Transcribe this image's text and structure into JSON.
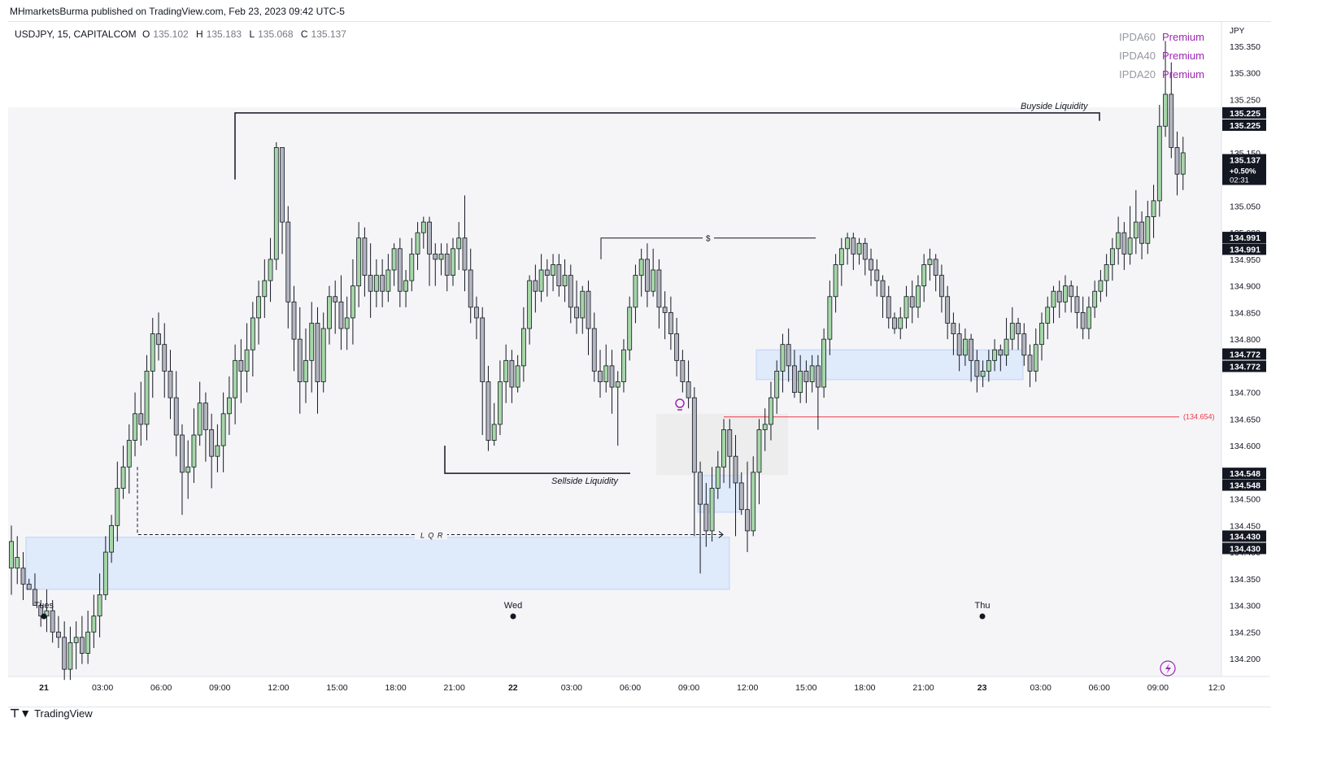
{
  "publisher_line": "MHmarketsBurma published on TradingView.com, Feb 23, 2023 09:42 UTC-5",
  "symbol": {
    "name": "USDJPY, 15, CAPITALCOM",
    "open_label": "O",
    "open": "135.102",
    "high_label": "H",
    "high": "135.183",
    "low_label": "L",
    "low": "135.068",
    "close_label": "C",
    "close": "135.137"
  },
  "ipda": [
    {
      "name": "IPDA60",
      "zone": "Premium"
    },
    {
      "name": "IPDA40",
      "zone": "Premium"
    },
    {
      "name": "IPDA20",
      "zone": "Premium"
    }
  ],
  "footer": {
    "brand": "TradingView"
  },
  "colors": {
    "up": "#a5d6a7",
    "down": "#b2b5be",
    "wick": "#131722",
    "zone_fill": "#dbe7fa",
    "zone_border": "#bfd3f5",
    "red_line": "#f23645",
    "premium": "#9c27b0"
  },
  "chart_data": {
    "type": "candlestick",
    "currency": "JPY",
    "ylim": [
      134.15,
      135.4
    ],
    "yticks": [
      "134.200",
      "134.250",
      "134.300",
      "134.350",
      "134.400",
      "134.450",
      "134.500",
      "134.550",
      "134.600",
      "134.650",
      "134.700",
      "134.750",
      "134.800",
      "134.850",
      "134.900",
      "134.950",
      "135.000",
      "135.050",
      "135.100",
      "135.150",
      "135.200",
      "135.250",
      "135.300",
      "135.350"
    ],
    "xticks": [
      {
        "label": "21",
        "major": true
      },
      {
        "label": "03:00"
      },
      {
        "label": "06:00"
      },
      {
        "label": "09:00"
      },
      {
        "label": "12:00"
      },
      {
        "label": "15:00"
      },
      {
        "label": "18:00"
      },
      {
        "label": "21:00"
      },
      {
        "label": "22",
        "major": true
      },
      {
        "label": "03:00"
      },
      {
        "label": "06:00"
      },
      {
        "label": "09:00"
      },
      {
        "label": "12:00"
      },
      {
        "label": "15:00"
      },
      {
        "label": "18:00"
      },
      {
        "label": "21:00"
      },
      {
        "label": "23",
        "major": true
      },
      {
        "label": "03:00"
      },
      {
        "label": "06:00"
      },
      {
        "label": "09:00"
      },
      {
        "label": "12:0"
      }
    ],
    "day_markers": [
      "Tues",
      "Wed",
      "Thu"
    ],
    "price_tags": [
      {
        "label": "135.225",
        "y": 135.225
      },
      {
        "label": "135.225",
        "y": 135.202
      },
      {
        "label": "134.991",
        "y": 134.991
      },
      {
        "label": "134.991",
        "y": 134.969
      },
      {
        "label": "134.772",
        "y": 134.772
      },
      {
        "label": "134.772",
        "y": 134.749
      },
      {
        "label": "134.548",
        "y": 134.548
      },
      {
        "label": "134.548",
        "y": 134.526
      },
      {
        "label": "134.430",
        "y": 134.43
      },
      {
        "label": "134.430",
        "y": 134.407
      }
    ],
    "current_price": {
      "price": "135.137",
      "change": "+0.50%",
      "countdown": "02:31",
      "y": 135.137
    },
    "red_line": {
      "label": "(134.654)",
      "y": 134.654
    },
    "annotations": {
      "buyside": "Buyside Liquidity",
      "sellside": "Sellside Liquidity",
      "lqr": "L Q R",
      "dollar": "$"
    },
    "candles": [
      [
        134.37,
        134.42,
        134.32,
        134.45
      ],
      [
        134.37,
        134.39,
        134.34,
        134.43
      ],
      [
        134.37,
        134.34,
        134.31,
        134.4
      ],
      [
        134.34,
        134.33,
        134.33,
        134.35
      ],
      [
        134.33,
        134.3,
        134.3,
        134.36
      ],
      [
        134.3,
        134.28,
        134.26,
        134.31
      ],
      [
        134.28,
        134.29,
        134.25,
        134.33
      ],
      [
        134.29,
        134.25,
        134.23,
        134.31
      ],
      [
        134.25,
        134.24,
        134.22,
        134.28
      ],
      [
        134.24,
        134.18,
        134.16,
        134.27
      ],
      [
        134.18,
        134.23,
        134.16,
        134.26
      ],
      [
        134.23,
        134.24,
        134.18,
        134.27
      ],
      [
        134.24,
        134.21,
        134.19,
        134.28
      ],
      [
        134.21,
        134.25,
        134.19,
        134.29
      ],
      [
        134.25,
        134.28,
        134.22,
        134.32
      ],
      [
        134.28,
        134.32,
        134.24,
        134.36
      ],
      [
        134.32,
        134.4,
        134.31,
        134.43
      ],
      [
        134.4,
        134.45,
        134.38,
        134.47
      ],
      [
        134.45,
        134.52,
        134.42,
        134.57
      ],
      [
        134.52,
        134.56,
        134.5,
        134.6
      ],
      [
        134.56,
        134.61,
        134.51,
        134.64
      ],
      [
        134.61,
        134.66,
        134.58,
        134.7
      ],
      [
        134.66,
        134.64,
        134.6,
        134.72
      ],
      [
        134.64,
        134.74,
        134.61,
        134.77
      ],
      [
        134.74,
        134.81,
        134.69,
        134.84
      ],
      [
        134.81,
        134.79,
        134.76,
        134.85
      ],
      [
        134.79,
        134.74,
        134.69,
        134.83
      ],
      [
        134.74,
        134.69,
        134.65,
        134.78
      ],
      [
        134.69,
        134.62,
        134.58,
        134.74
      ],
      [
        134.62,
        134.55,
        134.47,
        134.64
      ],
      [
        134.55,
        134.56,
        134.5,
        134.61
      ],
      [
        134.56,
        134.62,
        134.53,
        134.67
      ],
      [
        134.62,
        134.68,
        134.6,
        134.72
      ],
      [
        134.68,
        134.63,
        134.57,
        134.7
      ],
      [
        134.63,
        134.58,
        134.52,
        134.66
      ],
      [
        134.58,
        134.6,
        134.55,
        134.64
      ],
      [
        134.6,
        134.66,
        134.55,
        134.7
      ],
      [
        134.66,
        134.69,
        134.62,
        134.73
      ],
      [
        134.69,
        134.76,
        134.64,
        134.79
      ],
      [
        134.76,
        134.74,
        134.68,
        134.8
      ],
      [
        134.74,
        134.78,
        134.7,
        134.83
      ],
      [
        134.78,
        134.84,
        134.73,
        134.87
      ],
      [
        134.84,
        134.88,
        134.79,
        134.91
      ],
      [
        134.88,
        134.91,
        134.84,
        134.95
      ],
      [
        134.91,
        134.95,
        134.87,
        134.99
      ],
      [
        134.95,
        135.16,
        134.93,
        135.17
      ],
      [
        135.16,
        135.02,
        134.96,
        135.16
      ],
      [
        135.02,
        134.87,
        134.82,
        135.05
      ],
      [
        134.87,
        134.8,
        134.74,
        134.9
      ],
      [
        134.8,
        134.72,
        134.66,
        134.86
      ],
      [
        134.72,
        134.76,
        134.68,
        134.82
      ],
      [
        134.76,
        134.83,
        134.7,
        134.87
      ],
      [
        134.83,
        134.72,
        134.66,
        134.86
      ],
      [
        134.72,
        134.82,
        134.7,
        134.85
      ],
      [
        134.82,
        134.88,
        134.79,
        134.9
      ],
      [
        134.88,
        134.87,
        134.81,
        134.91
      ],
      [
        134.87,
        134.82,
        134.78,
        134.92
      ],
      [
        134.82,
        134.84,
        134.78,
        134.88
      ],
      [
        134.84,
        134.9,
        134.79,
        134.95
      ],
      [
        134.9,
        134.99,
        134.86,
        135.02
      ],
      [
        134.99,
        134.92,
        134.88,
        135.01
      ],
      [
        134.92,
        134.89,
        134.84,
        134.98
      ],
      [
        134.89,
        134.92,
        134.86,
        134.95
      ],
      [
        134.92,
        134.89,
        134.86,
        134.95
      ],
      [
        134.89,
        134.93,
        134.87,
        134.96
      ],
      [
        134.93,
        134.97,
        134.9,
        134.98
      ],
      [
        134.97,
        134.89,
        134.86,
        134.99
      ],
      [
        134.89,
        134.91,
        134.86,
        134.93
      ],
      [
        134.91,
        134.96,
        134.89,
        134.99
      ],
      [
        134.96,
        135.0,
        134.93,
        135.02
      ],
      [
        135.0,
        135.02,
        134.97,
        135.03
      ],
      [
        135.02,
        134.96,
        134.9,
        135.03
      ],
      [
        134.96,
        134.95,
        134.9,
        134.98
      ],
      [
        134.95,
        134.96,
        134.92,
        134.98
      ],
      [
        134.96,
        134.92,
        134.89,
        134.98
      ],
      [
        134.92,
        134.97,
        134.9,
        134.99
      ],
      [
        134.97,
        134.99,
        134.93,
        135.02
      ],
      [
        134.99,
        134.93,
        134.89,
        135.07
      ],
      [
        134.93,
        134.86,
        134.83,
        134.97
      ],
      [
        134.86,
        134.84,
        134.8,
        134.88
      ],
      [
        134.84,
        134.72,
        134.62,
        134.86
      ],
      [
        134.72,
        134.61,
        134.59,
        134.75
      ],
      [
        134.61,
        134.64,
        134.6,
        134.68
      ],
      [
        134.64,
        134.72,
        134.62,
        134.76
      ],
      [
        134.72,
        134.76,
        134.68,
        134.79
      ],
      [
        134.76,
        134.71,
        134.68,
        134.78
      ],
      [
        134.71,
        134.75,
        134.7,
        134.77
      ],
      [
        134.75,
        134.82,
        134.72,
        134.86
      ],
      [
        134.82,
        134.91,
        134.79,
        134.92
      ],
      [
        134.91,
        134.89,
        134.85,
        134.94
      ],
      [
        134.89,
        134.93,
        134.87,
        134.96
      ],
      [
        134.93,
        134.92,
        134.88,
        134.95
      ],
      [
        134.92,
        134.94,
        134.89,
        134.96
      ],
      [
        134.94,
        134.9,
        134.88,
        134.96
      ],
      [
        134.9,
        134.92,
        134.87,
        134.95
      ],
      [
        134.92,
        134.86,
        134.83,
        134.94
      ],
      [
        134.86,
        134.84,
        134.81,
        134.91
      ],
      [
        134.84,
        134.89,
        134.81,
        134.9
      ],
      [
        134.89,
        134.82,
        134.77,
        134.91
      ],
      [
        134.82,
        134.74,
        134.72,
        134.85
      ],
      [
        134.74,
        134.72,
        134.69,
        134.78
      ],
      [
        134.72,
        134.75,
        134.7,
        134.79
      ],
      [
        134.75,
        134.71,
        134.66,
        134.78
      ],
      [
        134.71,
        134.72,
        134.6,
        134.74
      ],
      [
        134.72,
        134.78,
        134.7,
        134.8
      ],
      [
        134.78,
        134.86,
        134.76,
        134.88
      ],
      [
        134.86,
        134.92,
        134.83,
        134.94
      ],
      [
        134.92,
        134.95,
        134.88,
        134.97
      ],
      [
        134.95,
        134.89,
        134.86,
        134.98
      ],
      [
        134.89,
        134.93,
        134.88,
        134.97
      ],
      [
        134.93,
        134.86,
        134.82,
        134.95
      ],
      [
        134.86,
        134.85,
        134.8,
        134.89
      ],
      [
        134.85,
        134.81,
        134.78,
        134.88
      ],
      [
        134.81,
        134.76,
        134.73,
        134.84
      ],
      [
        134.76,
        134.72,
        134.7,
        134.78
      ],
      [
        134.72,
        134.69,
        134.67,
        134.76
      ],
      [
        134.69,
        134.55,
        134.43,
        134.71
      ],
      [
        134.55,
        134.49,
        134.36,
        134.57
      ],
      [
        134.49,
        134.44,
        134.41,
        134.53
      ],
      [
        134.44,
        134.52,
        134.42,
        134.56
      ],
      [
        134.52,
        134.56,
        134.5,
        134.59
      ],
      [
        134.56,
        134.63,
        134.53,
        134.65
      ],
      [
        134.63,
        134.58,
        134.52,
        134.65
      ],
      [
        134.58,
        134.53,
        134.43,
        134.62
      ],
      [
        134.53,
        134.48,
        134.47,
        134.55
      ],
      [
        134.48,
        134.44,
        134.4,
        134.57
      ],
      [
        134.44,
        134.55,
        134.43,
        134.58
      ],
      [
        134.55,
        134.63,
        134.49,
        134.65
      ],
      [
        134.63,
        134.64,
        134.59,
        134.67
      ],
      [
        134.64,
        134.69,
        134.61,
        134.72
      ],
      [
        134.69,
        134.74,
        134.66,
        134.76
      ],
      [
        134.74,
        134.79,
        134.7,
        134.81
      ],
      [
        134.79,
        134.75,
        134.72,
        134.82
      ],
      [
        134.75,
        134.7,
        134.69,
        134.78
      ],
      [
        134.7,
        134.74,
        134.68,
        134.77
      ],
      [
        134.74,
        134.72,
        134.68,
        134.76
      ],
      [
        134.72,
        134.75,
        134.7,
        134.77
      ],
      [
        134.75,
        134.71,
        134.63,
        134.77
      ],
      [
        134.71,
        134.8,
        134.69,
        134.82
      ],
      [
        134.8,
        134.88,
        134.77,
        134.91
      ],
      [
        134.88,
        134.94,
        134.85,
        134.96
      ],
      [
        134.94,
        134.97,
        134.9,
        134.99
      ],
      [
        134.97,
        134.99,
        134.94,
        135.0
      ],
      [
        134.99,
        134.96,
        134.93,
        135.0
      ],
      [
        134.96,
        134.98,
        134.94,
        134.99
      ],
      [
        134.98,
        134.95,
        134.92,
        134.99
      ],
      [
        134.95,
        134.93,
        134.9,
        134.97
      ],
      [
        134.93,
        134.91,
        134.88,
        134.95
      ],
      [
        134.91,
        134.88,
        134.84,
        134.92
      ],
      [
        134.88,
        134.84,
        134.82,
        134.9
      ],
      [
        134.84,
        134.82,
        134.81,
        134.85
      ],
      [
        134.82,
        134.84,
        134.8,
        134.86
      ],
      [
        134.84,
        134.88,
        134.82,
        134.9
      ],
      [
        134.88,
        134.86,
        134.83,
        134.91
      ],
      [
        134.86,
        134.9,
        134.84,
        134.92
      ],
      [
        134.9,
        134.94,
        134.87,
        134.96
      ],
      [
        134.94,
        134.95,
        134.91,
        134.97
      ],
      [
        134.95,
        134.92,
        134.89,
        134.96
      ],
      [
        134.92,
        134.88,
        134.85,
        134.94
      ],
      [
        134.88,
        134.83,
        134.8,
        134.9
      ],
      [
        134.83,
        134.81,
        134.77,
        134.85
      ],
      [
        134.81,
        134.77,
        134.74,
        134.83
      ],
      [
        134.77,
        134.8,
        134.75,
        134.82
      ],
      [
        134.8,
        134.76,
        134.72,
        134.81
      ],
      [
        134.76,
        134.73,
        134.7,
        134.78
      ],
      [
        134.73,
        134.74,
        134.71,
        134.76
      ],
      [
        134.74,
        134.76,
        134.72,
        134.78
      ],
      [
        134.76,
        134.78,
        134.74,
        134.8
      ],
      [
        134.78,
        134.77,
        134.74,
        134.79
      ],
      [
        134.77,
        134.8,
        134.75,
        134.84
      ],
      [
        134.8,
        134.83,
        134.78,
        134.86
      ],
      [
        134.83,
        134.81,
        134.78,
        134.84
      ],
      [
        134.81,
        134.77,
        134.75,
        134.83
      ],
      [
        134.77,
        134.74,
        134.71,
        134.79
      ],
      [
        134.74,
        134.79,
        134.72,
        134.82
      ],
      [
        134.79,
        134.83,
        134.76,
        134.85
      ],
      [
        134.83,
        134.86,
        134.8,
        134.88
      ],
      [
        134.86,
        134.89,
        134.83,
        134.9
      ],
      [
        134.89,
        134.87,
        134.84,
        134.91
      ],
      [
        134.87,
        134.9,
        134.85,
        134.92
      ],
      [
        134.9,
        134.88,
        134.85,
        134.91
      ],
      [
        134.88,
        134.85,
        134.82,
        134.9
      ],
      [
        134.85,
        134.82,
        134.8,
        134.88
      ],
      [
        134.82,
        134.86,
        134.8,
        134.88
      ],
      [
        134.86,
        134.89,
        134.84,
        134.91
      ],
      [
        134.89,
        134.91,
        134.87,
        134.93
      ],
      [
        134.91,
        134.94,
        134.88,
        134.96
      ],
      [
        134.94,
        134.97,
        134.91,
        134.99
      ],
      [
        134.97,
        135.0,
        134.94,
        135.03
      ],
      [
        135.0,
        134.96,
        134.93,
        135.02
      ],
      [
        134.96,
        134.99,
        134.94,
        135.05
      ],
      [
        134.99,
        135.02,
        134.96,
        135.08
      ],
      [
        135.02,
        134.98,
        134.95,
        135.04
      ],
      [
        134.98,
        135.03,
        134.96,
        135.06
      ],
      [
        135.03,
        135.06,
        134.99,
        135.09
      ],
      [
        135.06,
        135.2,
        135.03,
        135.24
      ],
      [
        135.2,
        135.26,
        135.18,
        135.36
      ],
      [
        135.26,
        135.16,
        135.14,
        135.32
      ],
      [
        135.16,
        135.11,
        135.07,
        135.19
      ],
      [
        135.11,
        135.15,
        135.08,
        135.18
      ]
    ]
  }
}
